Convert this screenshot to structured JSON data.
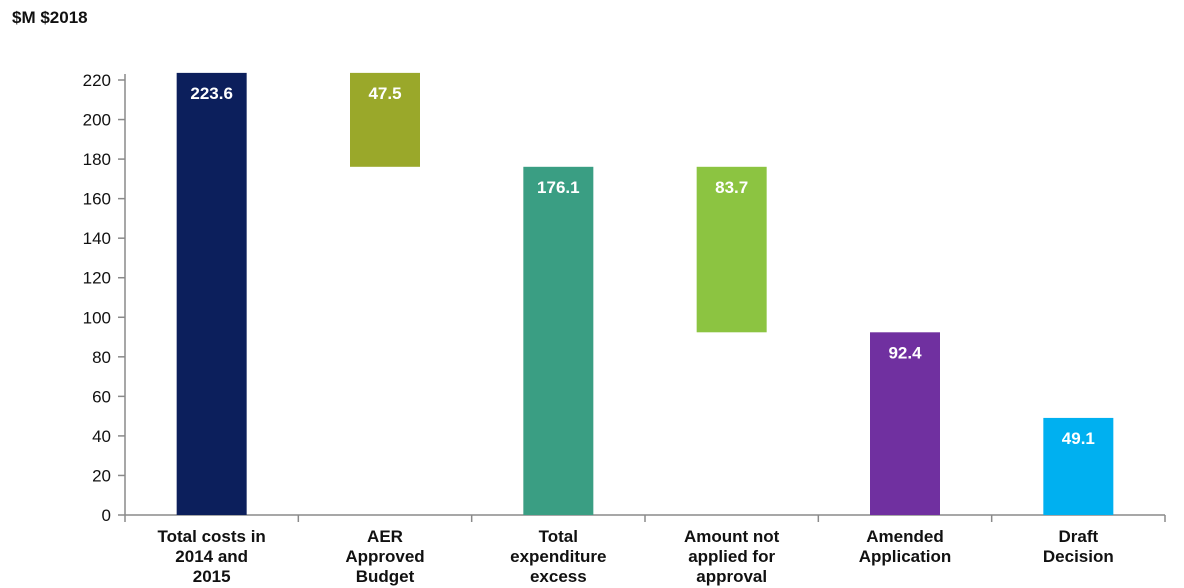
{
  "chart_data": {
    "type": "bar",
    "subtype": "waterfall",
    "unit_label": "$M $2018",
    "ylim": [
      0,
      220
    ],
    "yticks": [
      0,
      20,
      40,
      60,
      80,
      100,
      120,
      140,
      160,
      180,
      200,
      220
    ],
    "grid": false,
    "categories": [
      [
        "Total costs in",
        "2014 and",
        "2015"
      ],
      [
        "AER",
        "Approved",
        "Budget"
      ],
      [
        "Total",
        "expenditure",
        "excess"
      ],
      [
        "Amount not",
        "applied for",
        "approval"
      ],
      [
        "Amended",
        "Application"
      ],
      [
        "Draft",
        "Decision"
      ]
    ],
    "bars": [
      {
        "base": 0,
        "top": 223.6,
        "value": "223.6",
        "color": "#0c1f5c",
        "label_pos": "top"
      },
      {
        "base": 176.1,
        "top": 223.6,
        "value": "47.5",
        "color": "#9aa82a",
        "label_pos": "top"
      },
      {
        "base": 0,
        "top": 176.1,
        "value": "176.1",
        "color": "#3a9e83",
        "label_pos": "top"
      },
      {
        "base": 92.4,
        "top": 176.1,
        "value": "83.7",
        "color": "#8cc441",
        "label_pos": "top"
      },
      {
        "base": 0,
        "top": 92.4,
        "value": "92.4",
        "color": "#7030a0",
        "label_pos": "top"
      },
      {
        "base": 0,
        "top": 49.1,
        "value": "49.1",
        "color": "#00b0f0",
        "label_pos": "top"
      }
    ]
  }
}
